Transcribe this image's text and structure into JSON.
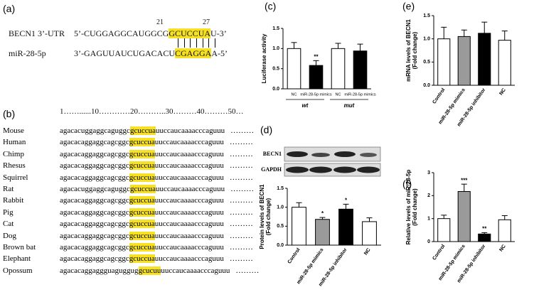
{
  "panel_a": {
    "label": "(a)",
    "utr": {
      "name": "BECN1 3’-UTR",
      "pre": "5’-CUGGAGGCAUGGCG",
      "site": "GCUCCUA",
      "post": "U-3’"
    },
    "mirna": {
      "name": "miR-28-5p",
      "pre": "3’-GAGUUAUCUGACACU",
      "site": "CGAGGA",
      "post": "A-5’"
    },
    "positions": [
      "21",
      "27"
    ]
  },
  "panel_b": {
    "label": "(b)",
    "ruler": "1……......10…………20………..30………40………50…",
    "rows": [
      {
        "name": "Mouse",
        "pre": "agacacuggaggcaguggc",
        "site": "gcuccua",
        "post": "uuccaucaaaacccaguuu",
        "tail": "………"
      },
      {
        "name": "Human",
        "pre": "agacacaggaggcagcggc",
        "site": "gcuccua",
        "post": "uuccaucaaaacccaguuu",
        "tail": "………"
      },
      {
        "name": "Chimp",
        "pre": "agacacaggaggcagcggc",
        "site": "gcuccua",
        "post": "uuccaucaaaacccaguuu",
        "tail": "………"
      },
      {
        "name": "Rhesus",
        "pre": "agacacaggaggcagcggc",
        "site": "gcuccua",
        "post": "uuccaucaaaacccaguuu",
        "tail": "………"
      },
      {
        "name": "Squirrel",
        "pre": "agacacaggaggcagcggc",
        "site": "gcuccua",
        "post": "uuccaucaaaacccaguuu",
        "tail": "………"
      },
      {
        "name": "Rat",
        "pre": "agacacuggaggcaguggc",
        "site": "gcuccua",
        "post": "uuccaucaaaacccaguuu",
        "tail": "………"
      },
      {
        "name": "Rabbit",
        "pre": "agacacaggaggcagcggc",
        "site": "gcuccua",
        "post": "uuccaucaaaacccaguuu",
        "tail": "………"
      },
      {
        "name": "Pig",
        "pre": "agacacaggaggcagcggc",
        "site": "gcuccua",
        "post": "uuccaucaaaacccaguuu",
        "tail": "………"
      },
      {
        "name": "Cat",
        "pre": "agacacaggaggcagcggc",
        "site": "gcuccua",
        "post": "uuccaucaaaacccaguuu",
        "tail": "………"
      },
      {
        "name": "Dog",
        "pre": "agacacaggaggcagcggc",
        "site": "gcuccua",
        "post": "uuccaucaaaacccaguuu",
        "tail": "………"
      },
      {
        "name": "Brown bat",
        "pre": "agacacaggaggcagcggc",
        "site": "gcuccua",
        "post": "uuccaucaaaacccaguuu",
        "tail": "………"
      },
      {
        "name": "Elephant",
        "pre": "agacacaggaggcagcggc",
        "site": "gcuccua",
        "post": "uuccaucaaaacccaguuu",
        "tail": "………"
      },
      {
        "name": "Opossum",
        "pre": "agacacaggaggguaguggug",
        "site": "gcucuu",
        "post": "uuccaucaaaacccaguuu",
        "tail": "………"
      }
    ]
  },
  "blot": {
    "labels": [
      "BECN1",
      "GAPDH"
    ]
  },
  "chart_data": [
    {
      "type": "bar",
      "panel": "(c)",
      "ylabel": [
        "Luciferase activity"
      ],
      "categories": [
        "NC",
        "miR-28-5p mimics",
        "NC",
        "miR-28-5p mimics"
      ],
      "values": [
        1.0,
        0.58,
        1.0,
        0.94
      ],
      "errors": [
        0.15,
        0.12,
        0.13,
        0.17
      ],
      "colors": [
        "#ffffff",
        "#000000",
        "#ffffff",
        "#000000"
      ],
      "significance": [
        null,
        "**",
        null,
        null
      ],
      "group_labels": [
        "wt",
        "mut"
      ],
      "rotate_labels": false,
      "ylim": [
        0,
        1.5
      ],
      "yticks": [
        {
          "value": 0,
          "label": "0.0"
        },
        {
          "value": 0.5,
          "label": "0.5"
        },
        {
          "value": 1,
          "label": "1.0"
        },
        {
          "value": 1.5,
          "label": "1.5"
        }
      ]
    },
    {
      "type": "bar",
      "panel": "(d)",
      "ylabel": [
        "Protein levels of BECN1",
        "(Fold change)"
      ],
      "categories": [
        "Control",
        "miR-28-5p mimics",
        "miR-28-5p inhibitor",
        "NC"
      ],
      "values": [
        1.0,
        0.68,
        0.95,
        0.62
      ],
      "errors": [
        0.12,
        0.05,
        0.13,
        0.1
      ],
      "colors": [
        "#ffffff",
        "#9a9a9a",
        "#000000",
        "#ffffff"
      ],
      "significance": [
        null,
        "*",
        "*",
        null
      ],
      "rotate_labels": true,
      "ylim": [
        0,
        1.5
      ],
      "yticks": [
        {
          "value": 0,
          "label": "0.0"
        },
        {
          "value": 0.5,
          "label": "0.5"
        },
        {
          "value": 1,
          "label": "1.0"
        },
        {
          "value": 1.5,
          "label": "1.5"
        }
      ]
    },
    {
      "type": "bar",
      "panel": "(e)",
      "ylabel": [
        "mRNA levels of BECN1",
        "(Fold change)"
      ],
      "categories": [
        "Control",
        "miR-28-5p mimics",
        "miR-28-5p inhibitor",
        "NC"
      ],
      "values": [
        1.0,
        1.05,
        1.12,
        0.97
      ],
      "errors": [
        0.25,
        0.14,
        0.24,
        0.2
      ],
      "colors": [
        "#ffffff",
        "#9a9a9a",
        "#000000",
        "#ffffff"
      ],
      "significance": [
        null,
        null,
        null,
        null
      ],
      "rotate_labels": true,
      "ylim": [
        0,
        1.5
      ],
      "yticks": [
        {
          "value": 0,
          "label": "0.0"
        },
        {
          "value": 0.5,
          "label": "0.5"
        },
        {
          "value": 1,
          "label": "1.0"
        },
        {
          "value": 1.5,
          "label": "1.5"
        }
      ]
    },
    {
      "type": "bar",
      "panel": "(f)",
      "ylabel": [
        "Relative levels of miR-28-5p",
        "(Fold change)"
      ],
      "categories": [
        "Control",
        "miR-28-5p mimics",
        "miR-28-5p inhibitor",
        "NC"
      ],
      "values": [
        1.0,
        2.18,
        0.33,
        0.95
      ],
      "errors": [
        0.15,
        0.32,
        0.06,
        0.18
      ],
      "colors": [
        "#ffffff",
        "#9a9a9a",
        "#000000",
        "#ffffff"
      ],
      "significance": [
        null,
        "***",
        "**",
        null
      ],
      "rotate_labels": true,
      "ylim": [
        0,
        3
      ],
      "yticks": [
        0,
        1,
        2,
        3
      ]
    }
  ]
}
